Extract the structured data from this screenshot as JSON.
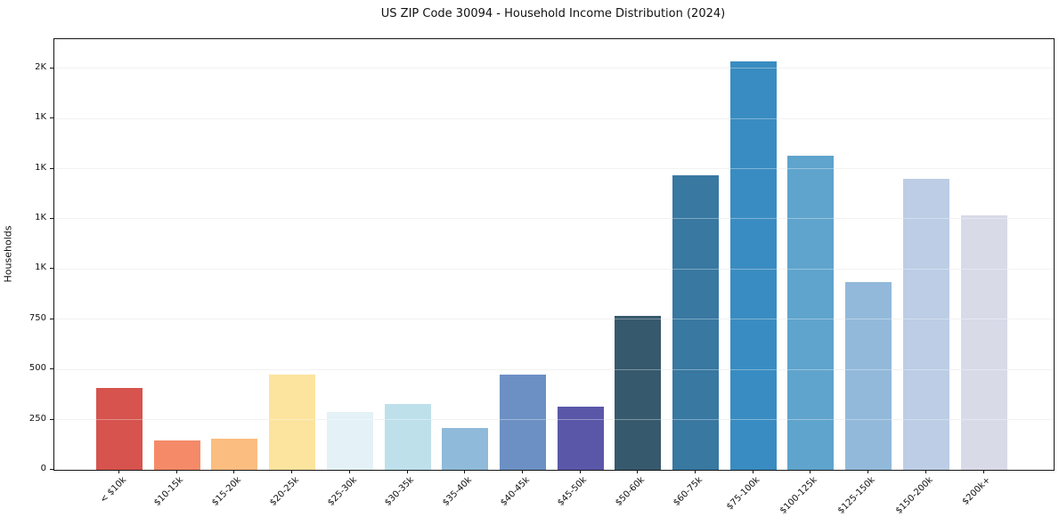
{
  "figure": {
    "background": "#ffffff",
    "frame_color": "#151515",
    "gridline_color": "#ebebeb"
  },
  "chart_data": {
    "type": "bar",
    "title": "US ZIP Code 30094 - Household Income Distribution (2024)",
    "xlabel": "",
    "ylabel": "Households",
    "categories": [
      "< $10k",
      "$10-15k",
      "$15-20k",
      "$20-25k",
      "$25-30k",
      "$30-35k",
      "$35-40k",
      "$40-45k",
      "$45-50k",
      "$50-60k",
      "$60-75k",
      "$75-100k",
      "$100-125k",
      "$125-150k",
      "$150-200k",
      "$200k+"
    ],
    "values": [
      408,
      148,
      153,
      475,
      289,
      328,
      208,
      475,
      315,
      767,
      1468,
      2035,
      1564,
      934,
      1447,
      1268
    ],
    "bar_colors": [
      "#d6534e",
      "#f48a68",
      "#fbbd80",
      "#fde49e",
      "#e4f1f6",
      "#bee0eb",
      "#90bad9",
      "#6c90c4",
      "#5a57a9",
      "#37596d",
      "#3878a1",
      "#398cc1",
      "#5fa4cc",
      "#92b9da",
      "#bccde5",
      "#d8dae8"
    ],
    "ylim": [
      0,
      2145
    ],
    "yticks": [
      {
        "value": 0,
        "label": "0"
      },
      {
        "value": 250,
        "label": "250"
      },
      {
        "value": 500,
        "label": "500"
      },
      {
        "value": 750,
        "label": "750"
      },
      {
        "value": 1000,
        "label": "1K"
      },
      {
        "value": 1250,
        "label": "1K"
      },
      {
        "value": 1500,
        "label": "1K"
      },
      {
        "value": 1750,
        "label": "1K"
      },
      {
        "value": 2000,
        "label": "2K"
      }
    ],
    "grid": "horizontal",
    "legend_position": "none",
    "x_tick_rotation_deg": 45
  }
}
